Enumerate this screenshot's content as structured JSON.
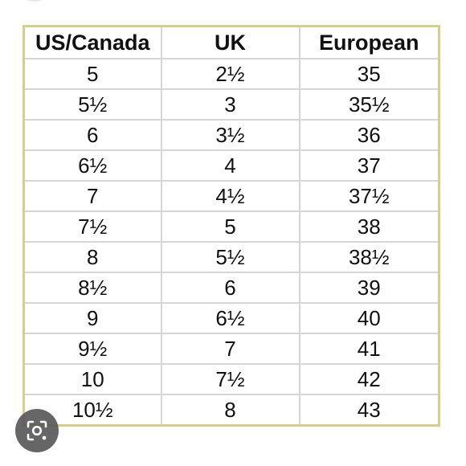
{
  "table": {
    "headers": [
      "US/Canada",
      "UK",
      "European"
    ],
    "rows": [
      [
        "5",
        "2½",
        "35"
      ],
      [
        "5½",
        "3",
        "35½"
      ],
      [
        "6",
        "3½",
        "36"
      ],
      [
        "6½",
        "4",
        "37"
      ],
      [
        "7",
        "4½",
        "37½"
      ],
      [
        "7½",
        "5",
        "38"
      ],
      [
        "8",
        "5½",
        "38½"
      ],
      [
        "8½",
        "6",
        "39"
      ],
      [
        "9",
        "6½",
        "40"
      ],
      [
        "9½",
        "7",
        "41"
      ],
      [
        "10",
        "7½",
        "42"
      ],
      [
        "10½",
        "8",
        "43"
      ]
    ]
  },
  "colors": {
    "table_border": "#d9cd8a",
    "grid_line": "#d6d6d6",
    "lens_button_bg": "#5a5a5a"
  },
  "icons": {
    "lens_button": "image-search-icon"
  }
}
